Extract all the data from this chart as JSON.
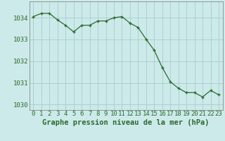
{
  "x": [
    0,
    1,
    2,
    3,
    4,
    5,
    6,
    7,
    8,
    9,
    10,
    11,
    12,
    13,
    14,
    15,
    16,
    17,
    18,
    19,
    20,
    21,
    22,
    23
  ],
  "y": [
    1034.05,
    1034.2,
    1034.2,
    1033.9,
    1033.65,
    1033.35,
    1033.65,
    1033.65,
    1033.85,
    1033.85,
    1034.0,
    1034.05,
    1033.75,
    1033.55,
    1033.0,
    1032.5,
    1031.7,
    1031.05,
    1030.75,
    1030.55,
    1030.55,
    1030.35,
    1030.65,
    1030.45
  ],
  "line_color": "#2d6a2d",
  "marker_color": "#2d6a2d",
  "bg_color": "#cceaea",
  "grid_color": "#aacccc",
  "text_color": "#2d6a2d",
  "xlabel": "Graphe pression niveau de la mer (hPa)",
  "ylim_min": 1029.75,
  "ylim_max": 1034.75,
  "yticks": [
    1030,
    1031,
    1032,
    1033,
    1034
  ],
  "xticks": [
    0,
    1,
    2,
    3,
    4,
    5,
    6,
    7,
    8,
    9,
    10,
    11,
    12,
    13,
    14,
    15,
    16,
    17,
    18,
    19,
    20,
    21,
    22,
    23
  ],
  "xlabel_fontsize": 7.5,
  "tick_fontsize": 6.5
}
